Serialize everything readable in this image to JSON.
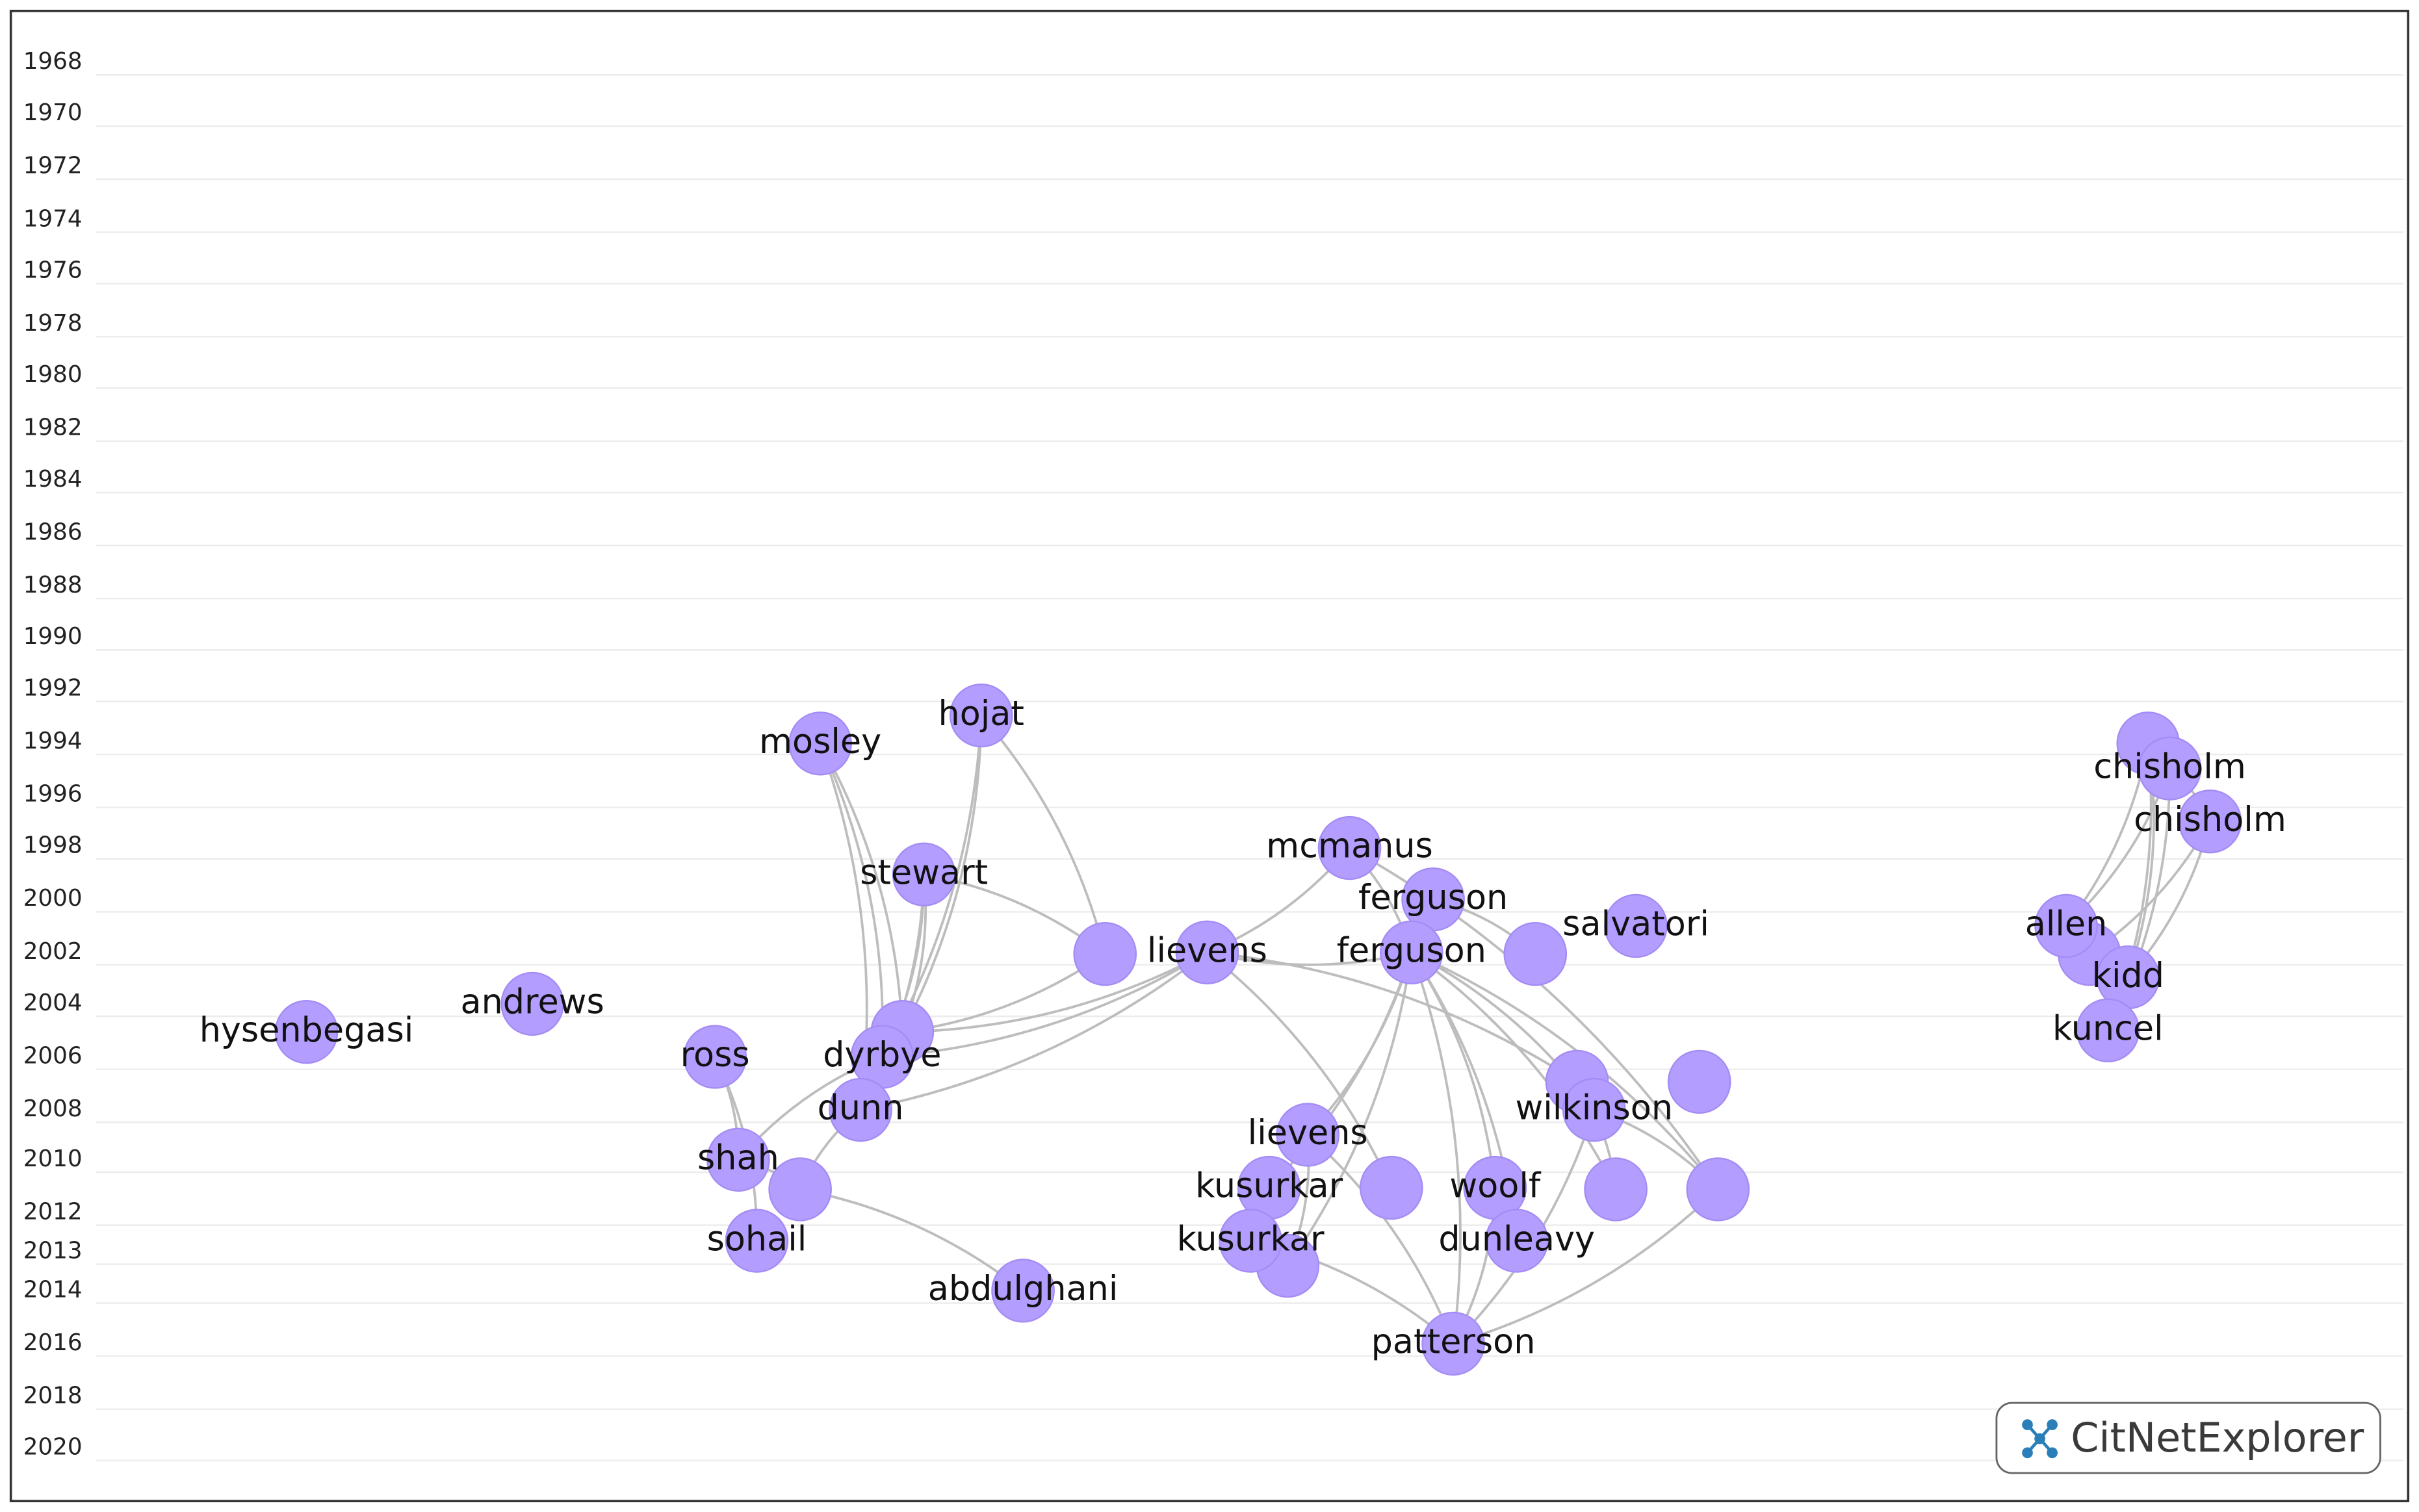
{
  "years": [
    1968,
    1970,
    1972,
    1974,
    1976,
    1978,
    1980,
    1982,
    1984,
    1986,
    1988,
    1990,
    1992,
    1994,
    1996,
    1998,
    2000,
    2002,
    2004,
    2006,
    2008,
    2010,
    2012,
    2013,
    2014,
    2016,
    2018,
    2020
  ],
  "nodes": [
    {
      "label": "hysenbegasi"
    },
    {
      "label": "andrews"
    },
    {
      "label": "ross"
    },
    {
      "label": "mosley"
    },
    {
      "label": "hojat"
    },
    {
      "label": "stewart"
    },
    {
      "label": "dyrbye"
    },
    {
      "label": "dunn"
    },
    {
      "label": "shah"
    },
    {
      "label": "sohail"
    },
    {
      "label": "abdulghani"
    },
    {
      "label": "lievens"
    },
    {
      "label": "mcmanus"
    },
    {
      "label": "ferguson"
    },
    {
      "label": "ferguson"
    },
    {
      "label": "salvatori"
    },
    {
      "label": "lievens"
    },
    {
      "label": "kusurkar"
    },
    {
      "label": "kusurkar"
    },
    {
      "label": "woolf"
    },
    {
      "label": "dunleavy"
    },
    {
      "label": "wilkinson"
    },
    {
      "label": "patterson"
    },
    {
      "label": "chisholm"
    },
    {
      "label": "chisholm"
    },
    {
      "label": "allen"
    },
    {
      "label": "kidd"
    },
    {
      "label": "kuncel"
    }
  ],
  "logo": {
    "text": "CitNetExplorer"
  }
}
